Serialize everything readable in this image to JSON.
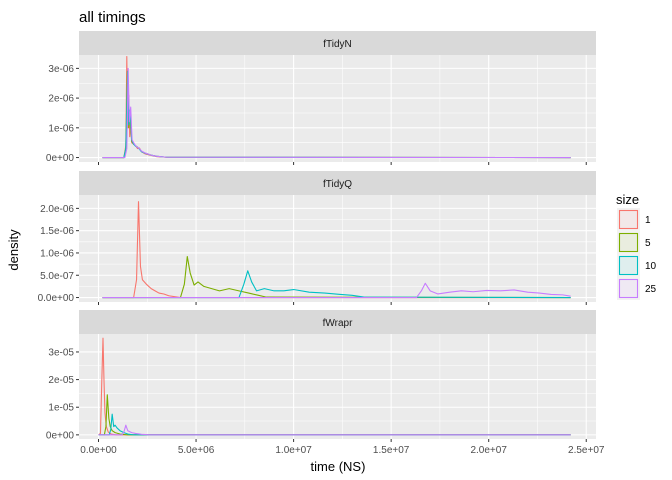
{
  "chart_data": {
    "type": "line",
    "title": "all timings",
    "xlabel": "time (NS)",
    "ylabel": "density",
    "xlim": [
      -1000000,
      25500000
    ],
    "x_ticks": [
      0,
      5000000,
      10000000,
      15000000,
      20000000,
      25000000
    ],
    "x_tick_labels": [
      "0.0e+00",
      "5.0e+06",
      "1.0e+07",
      "1.5e+07",
      "2.0e+07",
      "2.5e+07"
    ],
    "grid": true,
    "legend": {
      "title": "size",
      "position": "right",
      "entries": [
        "1",
        "5",
        "10",
        "25"
      ],
      "colors": [
        "#F8766D",
        "#7CAE00",
        "#00BFC4",
        "#C77CFF"
      ]
    },
    "facets": [
      {
        "strip": "fTidyN",
        "ylim": [
          -1.5e-07,
          3.45e-06
        ],
        "y_ticks": [
          0,
          1e-06,
          2e-06,
          3e-06
        ],
        "y_tick_labels": [
          "0e+00",
          "1e-06",
          "2e-06",
          "3e-06"
        ],
        "series": [
          {
            "name": "1",
            "x": [
              200000,
              1300000,
              1400000,
              1450000,
              1500000,
              1550000,
              1600000,
              1650000,
              1700000,
              1800000,
              1900000,
              2000000,
              2100000,
              2200000,
              2400000,
              2700000,
              3000000,
              3500000,
              24200000
            ],
            "y": [
              0,
              0,
              4e-07,
              3.4e-06,
              1e-06,
              2.1e-06,
              7e-07,
              1.2e-06,
              5e-07,
              4.5e-07,
              4e-07,
              3e-07,
              3.2e-07,
              2e-07,
              1.2e-07,
              7e-08,
              3e-08,
              1e-08,
              0
            ]
          },
          {
            "name": "5",
            "x": [
              200000,
              1300000,
              1400000,
              1480000,
              1550000,
              1620000,
              1700000,
              1800000,
              1900000,
              2000000,
              2100000,
              2200000,
              2400000,
              2700000,
              3000000,
              3500000,
              24200000
            ],
            "y": [
              0,
              0,
              3e-07,
              2.9e-06,
              1e-06,
              1.5e-06,
              5.5e-07,
              4.5e-07,
              4e-07,
              3.5e-07,
              3e-07,
              2e-07,
              1.5e-07,
              8e-08,
              4e-08,
              1e-08,
              0
            ]
          },
          {
            "name": "10",
            "x": [
              200000,
              1300000,
              1400000,
              1500000,
              1550000,
              1620000,
              1700000,
              1800000,
              1900000,
              2000000,
              2100000,
              2200000,
              2400000,
              2700000,
              3000000,
              3500000,
              24200000
            ],
            "y": [
              0,
              0,
              3e-07,
              2.9e-06,
              1.1e-06,
              1.6e-06,
              6e-07,
              4.5e-07,
              3.8e-07,
              3.5e-07,
              2.8e-07,
              2e-07,
              1.4e-07,
              8e-08,
              4e-08,
              1e-08,
              0
            ]
          },
          {
            "name": "25",
            "x": [
              200000,
              1350000,
              1450000,
              1520000,
              1580000,
              1650000,
              1720000,
              1800000,
              1900000,
              2000000,
              2100000,
              2200000,
              2400000,
              2700000,
              3000000,
              3500000,
              24200000
            ],
            "y": [
              0,
              0,
              3e-07,
              3e-06,
              1.2e-06,
              1.7e-06,
              6e-07,
              5e-07,
              4e-07,
              3.5e-07,
              3e-07,
              2.2e-07,
              1.5e-07,
              8e-08,
              4e-08,
              1e-08,
              0
            ]
          }
        ]
      },
      {
        "strip": "fTidyQ",
        "ylim": [
          -1e-07,
          2.3e-06
        ],
        "y_ticks": [
          0,
          5e-07,
          1e-06,
          1.5e-06,
          2e-06
        ],
        "y_tick_labels": [
          "0.0e+00",
          "5.0e-07",
          "1.0e-06",
          "1.5e-06",
          "2.0e-06"
        ],
        "series": [
          {
            "name": "1",
            "x": [
              200000,
              1800000,
              1950000,
              2050000,
              2150000,
              2250000,
              2450000,
              2700000,
              2900000,
              3100000,
              3350000,
              3600000,
              3900000,
              4200000,
              24200000
            ],
            "y": [
              0,
              0,
              4e-07,
              2.15e-06,
              7e-07,
              4e-07,
              3e-07,
              2e-07,
              1.5e-07,
              1e-07,
              8e-08,
              4e-08,
              2e-08,
              0,
              0
            ]
          },
          {
            "name": "5",
            "x": [
              200000,
              4200000,
              4400000,
              4550000,
              4700000,
              4900000,
              5100000,
              5400000,
              5800000,
              6200000,
              6700000,
              7200000,
              7700000,
              8200000,
              8600000,
              24200000
            ],
            "y": [
              0,
              0,
              3e-07,
              9.2e-07,
              5.5e-07,
              2.8e-07,
              3.5e-07,
              2.5e-07,
              2e-07,
              1.5e-07,
              2e-07,
              1.5e-07,
              1e-07,
              5e-08,
              1e-08,
              0
            ]
          },
          {
            "name": "10",
            "x": [
              200000,
              7200000,
              7450000,
              7650000,
              7850000,
              8100000,
              8500000,
              9000000,
              9500000,
              10000000,
              10800000,
              11600000,
              12400000,
              13000000,
              13600000,
              24200000
            ],
            "y": [
              0,
              0,
              3e-07,
              6e-07,
              3.5e-07,
              1.5e-07,
              2e-07,
              1.5e-07,
              1.5e-07,
              1.8e-07,
              1.2e-07,
              1e-07,
              7e-08,
              5e-08,
              1e-08,
              0
            ]
          },
          {
            "name": "25",
            "x": [
              200000,
              16300000,
              16550000,
              16750000,
              17000000,
              17400000,
              18000000,
              18600000,
              19200000,
              19900000,
              20600000,
              21300000,
              22000000,
              22600000,
              23200000,
              23800000,
              24200000
            ],
            "y": [
              0,
              0,
              1.5e-07,
              3.2e-07,
              1.5e-07,
              8e-08,
              1.2e-07,
              1.5e-07,
              1.3e-07,
              1.6e-07,
              1.5e-07,
              1.7e-07,
              1.2e-07,
              1e-07,
              7e-08,
              6e-08,
              3e-08
            ]
          }
        ]
      },
      {
        "strip": "fWrapr",
        "ylim": [
          -1.5e-06,
          3.65e-05
        ],
        "y_ticks": [
          0,
          1e-05,
          2e-05,
          3e-05
        ],
        "y_tick_labels": [
          "0e+00",
          "1e-05",
          "2e-05",
          "3e-05"
        ],
        "series": [
          {
            "name": "1",
            "x": [
              0,
              100000,
              170000,
              230000,
              280000,
              330000,
              400000,
              500000,
              650000,
              900000,
              24200000
            ],
            "y": [
              0,
              5e-07,
              2e-05,
              3.5e-05,
              2e-05,
              8e-06,
              3e-06,
              1e-06,
              3e-07,
              0,
              0
            ]
          },
          {
            "name": "5",
            "x": [
              0,
              300000,
              380000,
              450000,
              530000,
              600000,
              700000,
              850000,
              1100000,
              1500000,
              24200000
            ],
            "y": [
              0,
              0,
              3e-06,
              1.45e-05,
              6e-06,
              3e-06,
              1.5e-06,
              8e-07,
              3e-07,
              0,
              0
            ]
          },
          {
            "name": "10",
            "x": [
              0,
              550000,
              630000,
              700000,
              780000,
              850000,
              950000,
              1100000,
              1300000,
              1500000,
              1800000,
              24200000
            ],
            "y": [
              0,
              0,
              2e-06,
              7.5e-06,
              3e-06,
              3.5e-06,
              2.5e-06,
              1.5e-06,
              8e-07,
              3e-07,
              0,
              0
            ]
          },
          {
            "name": "25",
            "x": [
              0,
              1200000,
              1300000,
              1400000,
              1500000,
              1700000,
              1900000,
              2200000,
              2600000,
              24200000
            ],
            "y": [
              0,
              0,
              1e-06,
              3.5e-06,
              1.5e-06,
              8e-07,
              5e-07,
              2e-07,
              0,
              0
            ]
          }
        ]
      }
    ]
  }
}
